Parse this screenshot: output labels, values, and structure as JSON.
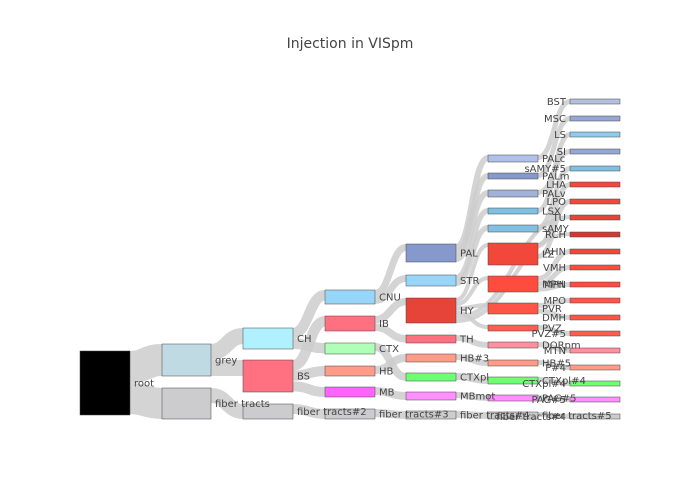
{
  "title": "Injection in VISpm",
  "diagram": {
    "type": "sankey",
    "link_color": "#cccccc",
    "nodes": [
      {
        "id": "root",
        "label": "root",
        "color": "#000000"
      },
      {
        "id": "grey",
        "label": "grey",
        "color": "#bfdae3"
      },
      {
        "id": "fiber_tracts",
        "label": "fiber tracts",
        "color": "#ccccce"
      },
      {
        "id": "CH",
        "label": "CH",
        "color": "#b0f0ff"
      },
      {
        "id": "BS",
        "label": "BS",
        "color": "#ff7080"
      },
      {
        "id": "fiber_tracts_2",
        "label": "fiber tracts#2",
        "color": "#ccccce"
      },
      {
        "id": "CNU",
        "label": "CNU",
        "color": "#98d6f9"
      },
      {
        "id": "IB",
        "label": "IB",
        "color": "#ff7080"
      },
      {
        "id": "CTX",
        "label": "CTX",
        "color": "#b0ffb8"
      },
      {
        "id": "HB",
        "label": "HB",
        "color": "#ff9b88"
      },
      {
        "id": "MB",
        "label": "MB",
        "color": "#ff64ff"
      },
      {
        "id": "fiber_tracts_3",
        "label": "fiber tracts#3",
        "color": "#ccccce"
      },
      {
        "id": "PAL",
        "label": "PAL",
        "color": "#8599cc"
      },
      {
        "id": "STR",
        "label": "STR",
        "color": "#98d6f9"
      },
      {
        "id": "HY",
        "label": "HY",
        "color": "#e64438"
      },
      {
        "id": "TH",
        "label": "TH",
        "color": "#ff7080"
      },
      {
        "id": "HB3",
        "label": "HB#3",
        "color": "#ff9b88"
      },
      {
        "id": "CTXpl",
        "label": "CTXpl",
        "color": "#70ff70"
      },
      {
        "id": "MBmot",
        "label": "MBmot",
        "color": "#ff90ff"
      },
      {
        "id": "fiber_tracts_4",
        "label": "fiber tracts#4",
        "color": "#ccccce"
      },
      {
        "id": "PALc",
        "label": "PALc",
        "color": "#b0c0e9"
      },
      {
        "id": "PALm",
        "label": "PALm",
        "color": "#8599cc"
      },
      {
        "id": "PALv",
        "label": "PALv",
        "color": "#a2b1d8"
      },
      {
        "id": "LSX",
        "label": "LSX",
        "color": "#80c0e2"
      },
      {
        "id": "sAMY",
        "label": "sAMY",
        "color": "#80c0e2"
      },
      {
        "id": "LZ",
        "label": "LZ",
        "color": "#f2483b"
      },
      {
        "id": "MPH",
        "label": "MPH",
        "color": "#ff4c3e"
      },
      {
        "id": "PVR",
        "label": "PVR",
        "color": "#ff5547"
      },
      {
        "id": "PVZ",
        "label": "PVZ",
        "color": "#ff5d50"
      },
      {
        "id": "DORpm",
        "label": "DORpm",
        "color": "#ff909f"
      },
      {
        "id": "HB5",
        "label": "HB#5",
        "color": "#ff9b88"
      },
      {
        "id": "CTXpl4",
        "label": "CTXpl#4",
        "color": "#70ff70"
      },
      {
        "id": "PAG5",
        "label": "PAG#5",
        "color": "#ff90ff"
      },
      {
        "id": "fiber_tracts_5",
        "label": "fiber tracts#5",
        "color": "#ccccce"
      },
      {
        "id": "BST",
        "label": "BST",
        "color": "#b3c0df"
      },
      {
        "id": "MSC",
        "label": "MSC",
        "color": "#96a7d3"
      },
      {
        "id": "LS",
        "label": "LS",
        "color": "#90cbed"
      },
      {
        "id": "SI",
        "label": "SI",
        "color": "#96a7d3"
      },
      {
        "id": "sAMY5",
        "label": "sAMY#5",
        "color": "#80c0e2"
      },
      {
        "id": "LHA",
        "label": "LHA",
        "color": "#f2483b"
      },
      {
        "id": "LPO",
        "label": "LPO",
        "color": "#f2483b"
      },
      {
        "id": "TU",
        "label": "TU",
        "color": "#e64438"
      },
      {
        "id": "RCH",
        "label": "RCH",
        "color": "#d23933"
      },
      {
        "id": "AHN",
        "label": "AHN",
        "color": "#f2483b"
      },
      {
        "id": "VMH",
        "label": "VMH",
        "color": "#ff4c3e"
      },
      {
        "id": "MPN",
        "label": "MPN",
        "color": "#ff4c3e"
      },
      {
        "id": "MPO",
        "label": "MPO",
        "color": "#ff5547"
      },
      {
        "id": "DMH",
        "label": "DMH",
        "color": "#ff5547"
      },
      {
        "id": "PVZ5",
        "label": "PVZ#5",
        "color": "#ff5d50"
      },
      {
        "id": "MTN",
        "label": "MTN",
        "color": "#ff909f"
      },
      {
        "id": "P4",
        "label": "P#4",
        "color": "#ff9b88"
      },
      {
        "id": "CTXpl_last",
        "label": "CTXpl#4",
        "color": "#70ff70"
      },
      {
        "id": "PAG_last",
        "label": "PAG#5",
        "color": "#ff90ff"
      },
      {
        "id": "fiber_tracts_last",
        "label": "fiber tracts#4",
        "color": "#ccccce"
      }
    ],
    "links": [
      {
        "source": "root",
        "target": "grey"
      },
      {
        "source": "root",
        "target": "fiber_tracts"
      },
      {
        "source": "grey",
        "target": "CH"
      },
      {
        "source": "grey",
        "target": "BS"
      },
      {
        "source": "fiber_tracts",
        "target": "fiber_tracts_2"
      },
      {
        "source": "CH",
        "target": "CNU"
      },
      {
        "source": "CH",
        "target": "CTX"
      },
      {
        "source": "BS",
        "target": "IB"
      },
      {
        "source": "BS",
        "target": "HB"
      },
      {
        "source": "BS",
        "target": "MB"
      },
      {
        "source": "fiber_tracts_2",
        "target": "fiber_tracts_3"
      },
      {
        "source": "CNU",
        "target": "PAL"
      },
      {
        "source": "CNU",
        "target": "STR"
      },
      {
        "source": "IB",
        "target": "HY"
      },
      {
        "source": "IB",
        "target": "TH"
      },
      {
        "source": "HB",
        "target": "HB3"
      },
      {
        "source": "CTX",
        "target": "CTXpl"
      },
      {
        "source": "MB",
        "target": "MBmot"
      },
      {
        "source": "fiber_tracts_3",
        "target": "fiber_tracts_4"
      },
      {
        "source": "PAL",
        "target": "PALc"
      },
      {
        "source": "PAL",
        "target": "PALm"
      },
      {
        "source": "PAL",
        "target": "PALv"
      },
      {
        "source": "STR",
        "target": "LSX"
      },
      {
        "source": "STR",
        "target": "sAMY"
      },
      {
        "source": "HY",
        "target": "LZ"
      },
      {
        "source": "HY",
        "target": "MPH"
      },
      {
        "source": "HY",
        "target": "PVR"
      },
      {
        "source": "HY",
        "target": "PVZ"
      },
      {
        "source": "TH",
        "target": "DORpm"
      },
      {
        "source": "HB3",
        "target": "HB5"
      },
      {
        "source": "CTXpl",
        "target": "CTXpl4"
      },
      {
        "source": "MBmot",
        "target": "PAG5"
      },
      {
        "source": "fiber_tracts_4",
        "target": "fiber_tracts_5"
      },
      {
        "source": "PALc",
        "target": "BST"
      },
      {
        "source": "PALm",
        "target": "MSC"
      },
      {
        "source": "LSX",
        "target": "LS"
      },
      {
        "source": "PALv",
        "target": "SI"
      },
      {
        "source": "sAMY",
        "target": "sAMY5"
      },
      {
        "source": "LZ",
        "target": "LHA"
      },
      {
        "source": "LZ",
        "target": "LPO"
      },
      {
        "source": "HY",
        "target": "TU"
      },
      {
        "source": "HY",
        "target": "RCH"
      },
      {
        "source": "MPH",
        "target": "AHN"
      },
      {
        "source": "MPH",
        "target": "VMH"
      },
      {
        "source": "MPH",
        "target": "MPN"
      },
      {
        "source": "PVR",
        "target": "MPO"
      },
      {
        "source": "PVR",
        "target": "DMH"
      },
      {
        "source": "PVZ",
        "target": "PVZ5"
      },
      {
        "source": "DORpm",
        "target": "MTN"
      },
      {
        "source": "HB5",
        "target": "P4"
      },
      {
        "source": "CTXpl4",
        "target": "CTXpl_last"
      },
      {
        "source": "PAG5",
        "target": "PAG_last"
      },
      {
        "source": "fiber_tracts_5",
        "target": "fiber_tracts_last"
      }
    ]
  }
}
